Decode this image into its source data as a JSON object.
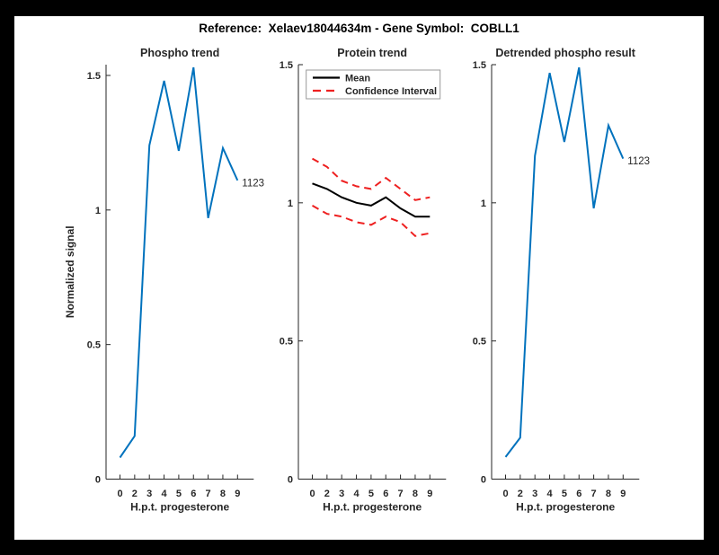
{
  "figure": {
    "title": "Reference:  Xelaev18044634m - Gene Symbol:  COBLL1",
    "frame_color": "#000000",
    "canvas_color": "#ffffff"
  },
  "colors": {
    "blue": "#0072bd",
    "red": "#ee2020",
    "black": "#000000",
    "axis": "#262626"
  },
  "chart_data": [
    {
      "type": "line",
      "title": "Phospho trend",
      "xlabel": "H.p.t. progesterone",
      "ylabel": "Normalized signal",
      "x_labels": [
        "0",
        "2",
        "3",
        "4",
        "5",
        "6",
        "7",
        "8",
        "9"
      ],
      "ytick_values": [
        0,
        0.5,
        1,
        1.5
      ],
      "ytick_labels": [
        "0",
        "0.5",
        "1",
        "1.5"
      ],
      "ylim": [
        0,
        1.54
      ],
      "grid": false,
      "series": [
        {
          "name": "phospho-signal",
          "color_key": "blue",
          "style": "solid",
          "values": [
            0.08,
            0.16,
            1.24,
            1.48,
            1.22,
            1.53,
            0.97,
            1.23,
            1.11
          ]
        }
      ],
      "end_label": "1123"
    },
    {
      "type": "line",
      "title": "Protein trend",
      "xlabel": "H.p.t. progesterone",
      "ylabel": "",
      "x_labels": [
        "0",
        "2",
        "3",
        "4",
        "5",
        "6",
        "7",
        "8",
        "9"
      ],
      "ytick_values": [
        0,
        0.5,
        1,
        1.5
      ],
      "ytick_labels": [
        "0",
        "0.5",
        "1",
        "1.5"
      ],
      "ylim": [
        0,
        1.5
      ],
      "grid": false,
      "legend": {
        "position": "top-left",
        "items": [
          {
            "label": "Mean",
            "color_key": "black",
            "style": "solid"
          },
          {
            "label": "Confidence Interval",
            "color_key": "red",
            "style": "dashed"
          }
        ]
      },
      "series": [
        {
          "name": "mean",
          "color_key": "black",
          "style": "solid",
          "values": [
            1.07,
            1.05,
            1.02,
            1.0,
            0.99,
            1.02,
            0.98,
            0.95,
            0.95
          ]
        },
        {
          "name": "confidence-upper",
          "color_key": "red",
          "style": "dashed",
          "values": [
            1.16,
            1.13,
            1.08,
            1.06,
            1.05,
            1.09,
            1.05,
            1.01,
            1.02
          ]
        },
        {
          "name": "confidence-lower",
          "color_key": "red",
          "style": "dashed",
          "values": [
            0.99,
            0.96,
            0.95,
            0.93,
            0.92,
            0.95,
            0.93,
            0.88,
            0.89
          ]
        }
      ]
    },
    {
      "type": "line",
      "title": "Detrended phospho result",
      "xlabel": "H.p.t. progesterone",
      "ylabel": "",
      "x_labels": [
        "0",
        "2",
        "3",
        "4",
        "5",
        "6",
        "7",
        "8",
        "9"
      ],
      "ytick_values": [
        0,
        0.5,
        1,
        1.5
      ],
      "ytick_labels": [
        "0",
        "0.5",
        "1",
        "1.5"
      ],
      "ylim": [
        0,
        1.5
      ],
      "grid": false,
      "series": [
        {
          "name": "detrended-phospho",
          "color_key": "blue",
          "style": "solid",
          "values": [
            0.08,
            0.15,
            1.17,
            1.47,
            1.22,
            1.49,
            0.98,
            1.28,
            1.16
          ]
        }
      ],
      "end_label": "1123"
    }
  ]
}
